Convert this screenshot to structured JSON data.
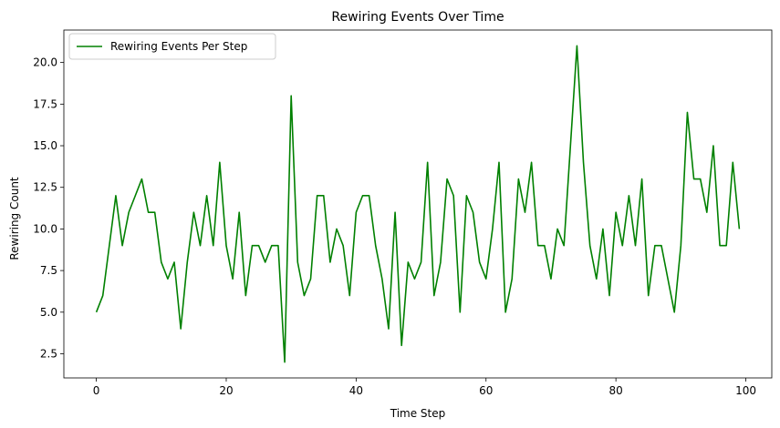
{
  "chart_data": {
    "type": "line",
    "title": "Rewiring Events Over Time",
    "xlabel": "Time Step",
    "ylabel": "Rewiring Count",
    "xlim": [
      -5,
      104
    ],
    "ylim": [
      1.05,
      21.95
    ],
    "xticks": [
      0,
      20,
      40,
      60,
      80,
      100
    ],
    "xtick_labels": [
      "0",
      "20",
      "40",
      "60",
      "80",
      "100"
    ],
    "yticks": [
      2.5,
      5.0,
      7.5,
      10.0,
      12.5,
      15.0,
      17.5,
      20.0
    ],
    "ytick_labels": [
      "2.5",
      "5.0",
      "7.5",
      "10.0",
      "12.5",
      "15.0",
      "17.5",
      "20.0"
    ],
    "grid": false,
    "legend_position": "top-left",
    "series": [
      {
        "name": "Rewiring Events Per Step",
        "color": "#008000",
        "x": [
          0,
          1,
          2,
          3,
          4,
          5,
          6,
          7,
          8,
          9,
          10,
          11,
          12,
          13,
          14,
          15,
          16,
          17,
          18,
          19,
          20,
          21,
          22,
          23,
          24,
          25,
          26,
          27,
          28,
          29,
          30,
          31,
          32,
          33,
          34,
          35,
          36,
          37,
          38,
          39,
          40,
          41,
          42,
          43,
          44,
          45,
          46,
          47,
          48,
          49,
          50,
          51,
          52,
          53,
          54,
          55,
          56,
          57,
          58,
          59,
          60,
          61,
          62,
          63,
          64,
          65,
          66,
          67,
          68,
          69,
          70,
          71,
          72,
          73,
          74,
          75,
          76,
          77,
          78,
          79,
          80,
          81,
          82,
          83,
          84,
          85,
          86,
          87,
          88,
          89,
          90,
          91,
          92,
          93,
          94,
          95,
          96,
          97,
          98,
          99
        ],
        "values": [
          5,
          6,
          9,
          12,
          9,
          11,
          12,
          13,
          11,
          11,
          8,
          7,
          8,
          4,
          8,
          11,
          9,
          12,
          9,
          14,
          9,
          7,
          11,
          6,
          9,
          9,
          8,
          9,
          9,
          2,
          18,
          8,
          6,
          7,
          12,
          12,
          8,
          10,
          9,
          6,
          11,
          12,
          12,
          9,
          7,
          4,
          11,
          3,
          8,
          7,
          8,
          14,
          6,
          8,
          13,
          12,
          5,
          12,
          11,
          8,
          7,
          10,
          14,
          5,
          7,
          13,
          11,
          14,
          9,
          9,
          7,
          10,
          9,
          15,
          21,
          14,
          9,
          7,
          10,
          6,
          11,
          9,
          12,
          9,
          13,
          6,
          9,
          9,
          7,
          5,
          9,
          17,
          13,
          13,
          11,
          15,
          9,
          9,
          14,
          10
        ]
      }
    ]
  }
}
